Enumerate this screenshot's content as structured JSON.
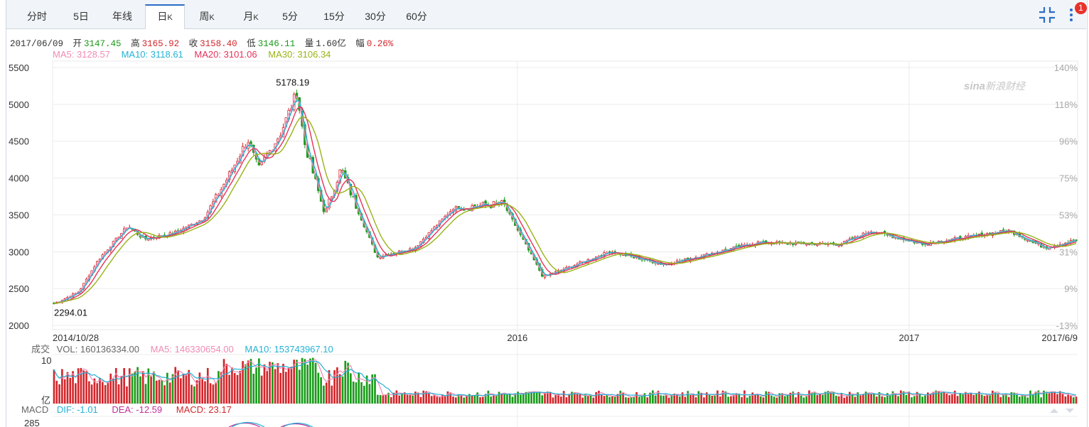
{
  "tabs": [
    {
      "label": "分时",
      "suffix": ""
    },
    {
      "label": "5日",
      "suffix": ""
    },
    {
      "label": "年线",
      "suffix": ""
    },
    {
      "label": "日",
      "suffix": "K"
    },
    {
      "label": "周",
      "suffix": "K"
    },
    {
      "label": "月",
      "suffix": "K"
    },
    {
      "label": "5分",
      "suffix": ""
    },
    {
      "label": "15分",
      "suffix": ""
    },
    {
      "label": "30分",
      "suffix": ""
    },
    {
      "label": "60分",
      "suffix": ""
    }
  ],
  "active_tab": "日K",
  "notification_count": "1",
  "quote": {
    "date": "2017/06/09",
    "open_label": "开",
    "open": "3147.45",
    "high_label": "高",
    "high": "3165.92",
    "close_label": "收",
    "close": "3158.40",
    "low_label": "低",
    "low": "3146.11",
    "volume_label": "量",
    "volume": "1.60亿",
    "change_label": "幅",
    "change": "0.26%"
  },
  "ma_legend": {
    "ma5": "MA5: 3128.57",
    "ma10": "MA10: 3118.61",
    "ma20": "MA20: 3101.06",
    "ma30": "MA30: 3106.34"
  },
  "watermark": {
    "brand": "sina",
    "text": "新浪财经"
  },
  "volume_legend": {
    "title": "成交",
    "vol": "VOL: 160136334.00",
    "ma5": "MA5: 146330654.00",
    "ma10": "MA10: 153743967.10",
    "unit": "亿"
  },
  "macd_legend": {
    "title": "MACD",
    "dif": "DIF: -1.01",
    "dea": "DEA: -12.59",
    "macd": "MACD: 23.17"
  },
  "colors": {
    "up": "#d3262b",
    "down": "#1a9b1a",
    "ma5": "#f08bb4",
    "ma10": "#22b2d6",
    "ma20": "#e8305a",
    "ma30": "#98b416",
    "tab_active": "#2a6cc7"
  },
  "chart_data": [
    {
      "type": "candlestick",
      "title": "日K",
      "y_axis": {
        "min": 2000,
        "max": 5500,
        "ticks": [
          5500,
          5000,
          4500,
          4000,
          3500,
          3000,
          2500,
          2000
        ]
      },
      "y2_axis_ticks": [
        "140%",
        "118%",
        "96%",
        "75%",
        "53%",
        "31%",
        "9%",
        "-13%"
      ],
      "x_labels": [
        "2014/10/28",
        "2016",
        "2017",
        "2017/6/9"
      ],
      "annotations": {
        "max_label": "5178.19",
        "min_label": "2294.01"
      },
      "price_keypoints": [
        {
          "date": "2014-10-28",
          "close": 2294
        },
        {
          "date": "2014-11-20",
          "close": 2452
        },
        {
          "date": "2014-12-09",
          "close": 2900
        },
        {
          "date": "2015-01-05",
          "close": 3351
        },
        {
          "date": "2015-01-20",
          "close": 3170
        },
        {
          "date": "2015-02-16",
          "close": 3247
        },
        {
          "date": "2015-03-17",
          "close": 3449
        },
        {
          "date": "2015-04-08",
          "close": 3994
        },
        {
          "date": "2015-04-27",
          "close": 4527
        },
        {
          "date": "2015-05-07",
          "close": 4112
        },
        {
          "date": "2015-05-28",
          "close": 4620
        },
        {
          "date": "2015-06-12",
          "close": 5166
        },
        {
          "date": "2015-06-19",
          "close": 4478
        },
        {
          "date": "2015-07-08",
          "close": 3507
        },
        {
          "date": "2015-07-23",
          "close": 4123
        },
        {
          "date": "2015-08-26",
          "close": 2927
        },
        {
          "date": "2015-09-30",
          "close": 3053
        },
        {
          "date": "2015-11-05",
          "close": 3590
        },
        {
          "date": "2015-12-22",
          "close": 3651
        },
        {
          "date": "2016-01-28",
          "close": 2656
        },
        {
          "date": "2016-03-31",
          "close": 3004
        },
        {
          "date": "2016-05-20",
          "close": 2825
        },
        {
          "date": "2016-08-15",
          "close": 3125
        },
        {
          "date": "2016-10-31",
          "close": 3100
        },
        {
          "date": "2016-11-29",
          "close": 3282
        },
        {
          "date": "2017-01-16",
          "close": 3104
        },
        {
          "date": "2017-04-07",
          "close": 3287
        },
        {
          "date": "2017-05-11",
          "close": 3053
        },
        {
          "date": "2017-06-09",
          "close": 3158
        }
      ]
    },
    {
      "type": "bar",
      "title": "成交",
      "y_axis": {
        "ticks": [
          "10",
          "亿"
        ]
      },
      "series": [
        {
          "name": "VOL",
          "last": 160136334.0
        },
        {
          "name": "MA5",
          "last": 146330654.0
        },
        {
          "name": "MA10",
          "last": 153743967.1
        }
      ]
    },
    {
      "type": "line",
      "title": "MACD",
      "y_axis": {
        "ticks": [
          "285"
        ]
      },
      "series": [
        {
          "name": "DIF",
          "last": -1.01
        },
        {
          "name": "DEA",
          "last": -12.59
        },
        {
          "name": "MACD",
          "last": 23.17
        }
      ]
    }
  ]
}
